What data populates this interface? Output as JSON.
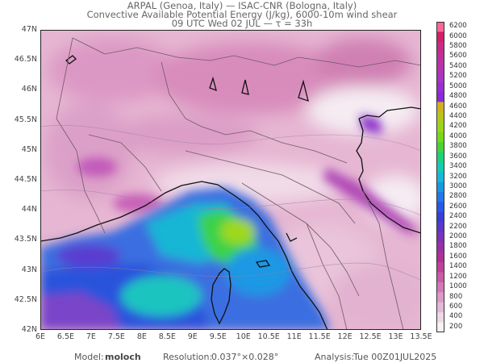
{
  "header": {
    "line1": "ARPAL (Genoa, Italy)  —  ISAC-CNR (Bologna, Italy)",
    "line2": "Convective Available Potential Energy (J/kg), 6000-10m wind shear",
    "line3": "09 UTC Wed 02 JUL  —  τ = 33h"
  },
  "map": {
    "lat_labels": [
      "47N",
      "46.5N",
      "46N",
      "45.5N",
      "45N",
      "44.5N",
      "44N",
      "43.5N",
      "43N",
      "42.5N",
      "42N"
    ],
    "lon_labels": [
      "6E",
      "6.5E",
      "7E",
      "7.5E",
      "8E",
      "8.5E",
      "9E",
      "9.5E",
      "10E",
      "10.5E",
      "11E",
      "11.5E",
      "12E",
      "12.5E",
      "13E",
      "13.5E"
    ],
    "lon_range": [
      6,
      13.5
    ],
    "lat_range": [
      42,
      47
    ]
  },
  "colorbar": {
    "labels": [
      "6200",
      "6000",
      "5800",
      "5600",
      "5400",
      "5200",
      "5000",
      "4800",
      "4600",
      "4400",
      "4200",
      "4000",
      "3800",
      "3600",
      "3400",
      "3200",
      "3000",
      "2800",
      "2600",
      "2400",
      "2200",
      "2000",
      "1800",
      "1600",
      "1400",
      "1200",
      "1000",
      "800",
      "600",
      "400",
      "200"
    ],
    "colors": [
      "#ff6699",
      "#d31f68",
      "#ca2a86",
      "#c0309a",
      "#b634ae",
      "#aa35c2",
      "#9a2fd0",
      "#8a2ad8",
      "#d0b020",
      "#b8c41a",
      "#9cd418",
      "#78d818",
      "#46d438",
      "#1ed27a",
      "#14ccb0",
      "#18b8d8",
      "#1a98e4",
      "#2278e8",
      "#2a58e8",
      "#3a3ed8",
      "#5a38c8",
      "#7a34b8",
      "#9a30a8",
      "#b03098",
      "#c2409a",
      "#cc5aa8",
      "#d478b8",
      "#dc98c8",
      "#e4b8d6",
      "#eed8e6",
      "#f8f0f4"
    ]
  },
  "footer": {
    "model_label": "Model:",
    "model_value": "moloch",
    "resolution_label": "Resolution:",
    "resolution_value": "0.037°×0.028°",
    "analysis_label": "Analysis:",
    "analysis_value": "Tue 00Z01JUL2025"
  }
}
